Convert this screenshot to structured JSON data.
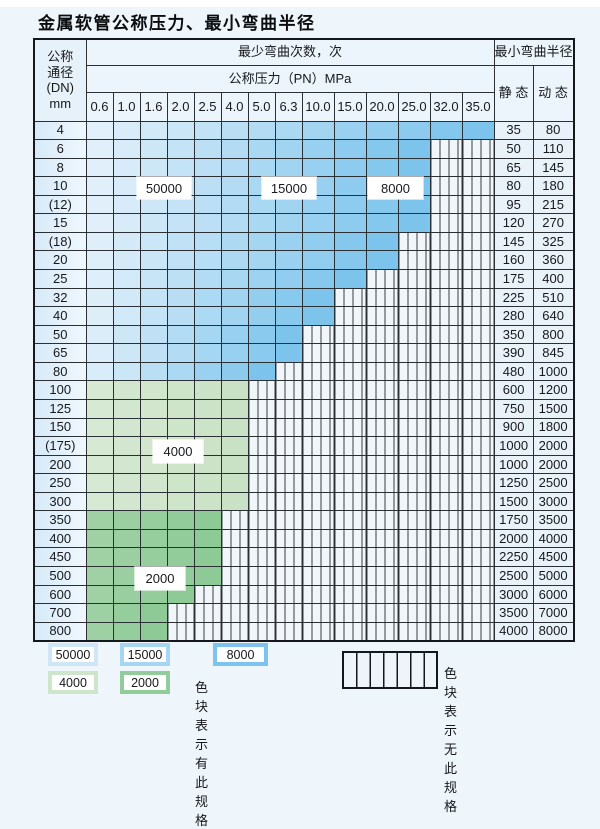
{
  "title": "金属软管公称压力、最小弯曲半径",
  "table": {
    "dn_header_lines": [
      "公称",
      "通径",
      "(DN)",
      "mm"
    ],
    "bend_cycles_header": "最少弯曲次数，次",
    "pressure_header": "公称压力（PN）MPa",
    "radius_header": "最小弯曲半径",
    "static_header": "静 态",
    "dynamic_header": "动 态",
    "pressure_columns": [
      "0.6",
      "1.0",
      "1.6",
      "2.0",
      "2.5",
      "4.0",
      "5.0",
      "6.3",
      "10.0",
      "15.0",
      "20.0",
      "25.0",
      "32.0",
      "35.0"
    ],
    "rows": [
      {
        "dn": "4",
        "colored": 14,
        "palette": "blue",
        "static": "35",
        "dynamic": "80"
      },
      {
        "dn": "6",
        "colored": 12,
        "palette": "blue",
        "static": "50",
        "dynamic": "110"
      },
      {
        "dn": "8",
        "colored": 12,
        "palette": "blue",
        "static": "65",
        "dynamic": "145"
      },
      {
        "dn": "10",
        "colored": 12,
        "palette": "blue",
        "static": "80",
        "dynamic": "180"
      },
      {
        "dn": "(12)",
        "colored": 12,
        "palette": "blue",
        "static": "95",
        "dynamic": "215"
      },
      {
        "dn": "15",
        "colored": 12,
        "palette": "blue",
        "static": "120",
        "dynamic": "270"
      },
      {
        "dn": "(18)",
        "colored": 11,
        "palette": "blue",
        "static": "145",
        "dynamic": "325"
      },
      {
        "dn": "20",
        "colored": 11,
        "palette": "blue",
        "static": "160",
        "dynamic": "360"
      },
      {
        "dn": "25",
        "colored": 10,
        "palette": "blue",
        "static": "175",
        "dynamic": "400"
      },
      {
        "dn": "32",
        "colored": 9,
        "palette": "blue",
        "static": "225",
        "dynamic": "510"
      },
      {
        "dn": "40",
        "colored": 9,
        "palette": "blue",
        "static": "280",
        "dynamic": "640"
      },
      {
        "dn": "50",
        "colored": 8,
        "palette": "blue",
        "static": "350",
        "dynamic": "800"
      },
      {
        "dn": "65",
        "colored": 8,
        "palette": "blue",
        "static": "390",
        "dynamic": "845"
      },
      {
        "dn": "80",
        "colored": 7,
        "palette": "blue",
        "static": "480",
        "dynamic": "1000"
      },
      {
        "dn": "100",
        "colored": 6,
        "palette": "g4",
        "static": "600",
        "dynamic": "1200"
      },
      {
        "dn": "125",
        "colored": 6,
        "palette": "g4",
        "static": "750",
        "dynamic": "1500"
      },
      {
        "dn": "150",
        "colored": 6,
        "palette": "g4",
        "static": "900",
        "dynamic": "1800"
      },
      {
        "dn": "(175)",
        "colored": 6,
        "palette": "g4",
        "static": "1000",
        "dynamic": "2000"
      },
      {
        "dn": "200",
        "colored": 6,
        "palette": "g4",
        "static": "1000",
        "dynamic": "2000"
      },
      {
        "dn": "250",
        "colored": 6,
        "palette": "g4",
        "static": "1250",
        "dynamic": "2500"
      },
      {
        "dn": "300",
        "colored": 6,
        "palette": "g4",
        "static": "1500",
        "dynamic": "3000"
      },
      {
        "dn": "350",
        "colored": 5,
        "palette": "g2",
        "static": "1750",
        "dynamic": "3500"
      },
      {
        "dn": "400",
        "colored": 5,
        "palette": "g2",
        "static": "2000",
        "dynamic": "4000"
      },
      {
        "dn": "450",
        "colored": 5,
        "palette": "g2",
        "static": "2250",
        "dynamic": "4500"
      },
      {
        "dn": "500",
        "colored": 5,
        "palette": "g2",
        "static": "2500",
        "dynamic": "5000"
      },
      {
        "dn": "600",
        "colored": 4,
        "palette": "g2",
        "static": "3000",
        "dynamic": "6000"
      },
      {
        "dn": "700",
        "colored": 3,
        "palette": "g2",
        "static": "3500",
        "dynamic": "7000"
      },
      {
        "dn": "800",
        "colored": 3,
        "palette": "g2",
        "static": "4000",
        "dynamic": "8000"
      }
    ]
  },
  "zone_labels": [
    {
      "text": "50000"
    },
    {
      "text": "15000"
    },
    {
      "text": "8000"
    },
    {
      "text": "4000"
    },
    {
      "text": "2000"
    }
  ],
  "legend": {
    "swatches": [
      {
        "label": "50000",
        "color": "#cfe6f6"
      },
      {
        "label": "15000",
        "color": "#a6d6f2"
      },
      {
        "label": "8000",
        "color": "#7cc3ed"
      },
      {
        "label": "4000",
        "color": "#cde5ca"
      },
      {
        "label": "2000",
        "color": "#93cc9b"
      }
    ],
    "has_spec_label": "色块表示有此规格",
    "no_spec_label": "色块表示无此规格"
  },
  "colors": {
    "palettes": {
      "blue": [
        "#e9f3fb",
        "#7cc4ec"
      ],
      "g4": [
        "#d8ead5",
        "#c9e2c5"
      ],
      "g2": [
        "#a4d3a9",
        "#8eca96"
      ]
    },
    "page_background": "#eef6fb",
    "grid_border": "#2b3035",
    "stripe_background": "#f1f6fa"
  }
}
